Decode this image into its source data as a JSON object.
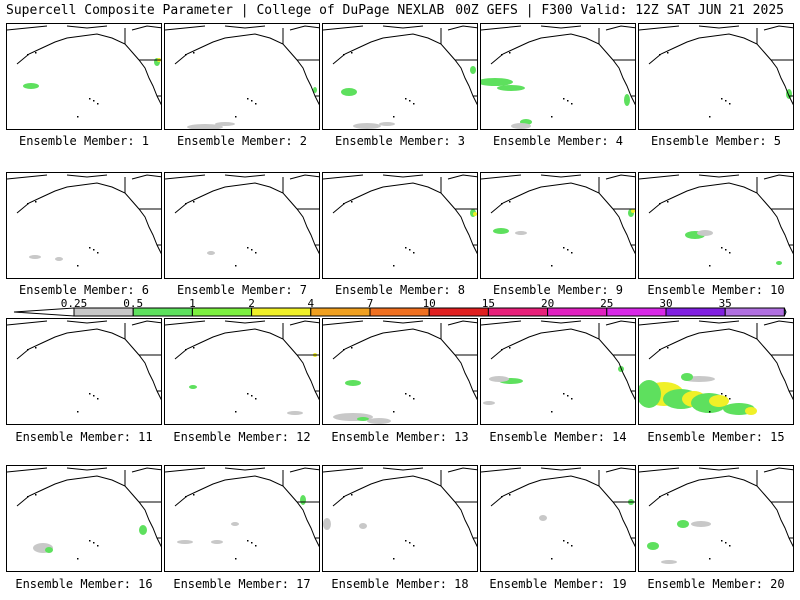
{
  "header": {
    "left": "Supercell Composite Parameter | College of DuPage NEXLAB",
    "right": "00Z GEFS | F300 Valid: 12Z SAT JUN 21 2025"
  },
  "colorbar": {
    "ticks": [
      "0.25",
      "0.5",
      "1",
      "2",
      "4",
      "7",
      "10",
      "15",
      "20",
      "25",
      "30",
      "35"
    ],
    "colors": [
      "#c8c8c8",
      "#5ee05e",
      "#7cf040",
      "#f0f028",
      "#f0a020",
      "#f07020",
      "#e02020",
      "#e8207a",
      "#e020c0",
      "#d828e8",
      "#8020e0",
      "#b070e0",
      "#40e0e0"
    ]
  },
  "members": [
    {
      "label": "Ensemble Member: 1"
    },
    {
      "label": "Ensemble Member: 2"
    },
    {
      "label": "Ensemble Member: 3"
    },
    {
      "label": "Ensemble Member: 4"
    },
    {
      "label": "Ensemble Member: 5"
    },
    {
      "label": "Ensemble Member: 6"
    },
    {
      "label": "Ensemble Member: 7"
    },
    {
      "label": "Ensemble Member: 8"
    },
    {
      "label": "Ensemble Member: 9"
    },
    {
      "label": "Ensemble Member: 10"
    },
    {
      "label": "Ensemble Member: 11"
    },
    {
      "label": "Ensemble Member: 12"
    },
    {
      "label": "Ensemble Member: 13"
    },
    {
      "label": "Ensemble Member: 14"
    },
    {
      "label": "Ensemble Member: 15"
    },
    {
      "label": "Ensemble Member: 16"
    },
    {
      "label": "Ensemble Member: 17"
    },
    {
      "label": "Ensemble Member: 18"
    },
    {
      "label": "Ensemble Member: 19"
    },
    {
      "label": "Ensemble Member: 20"
    }
  ]
}
